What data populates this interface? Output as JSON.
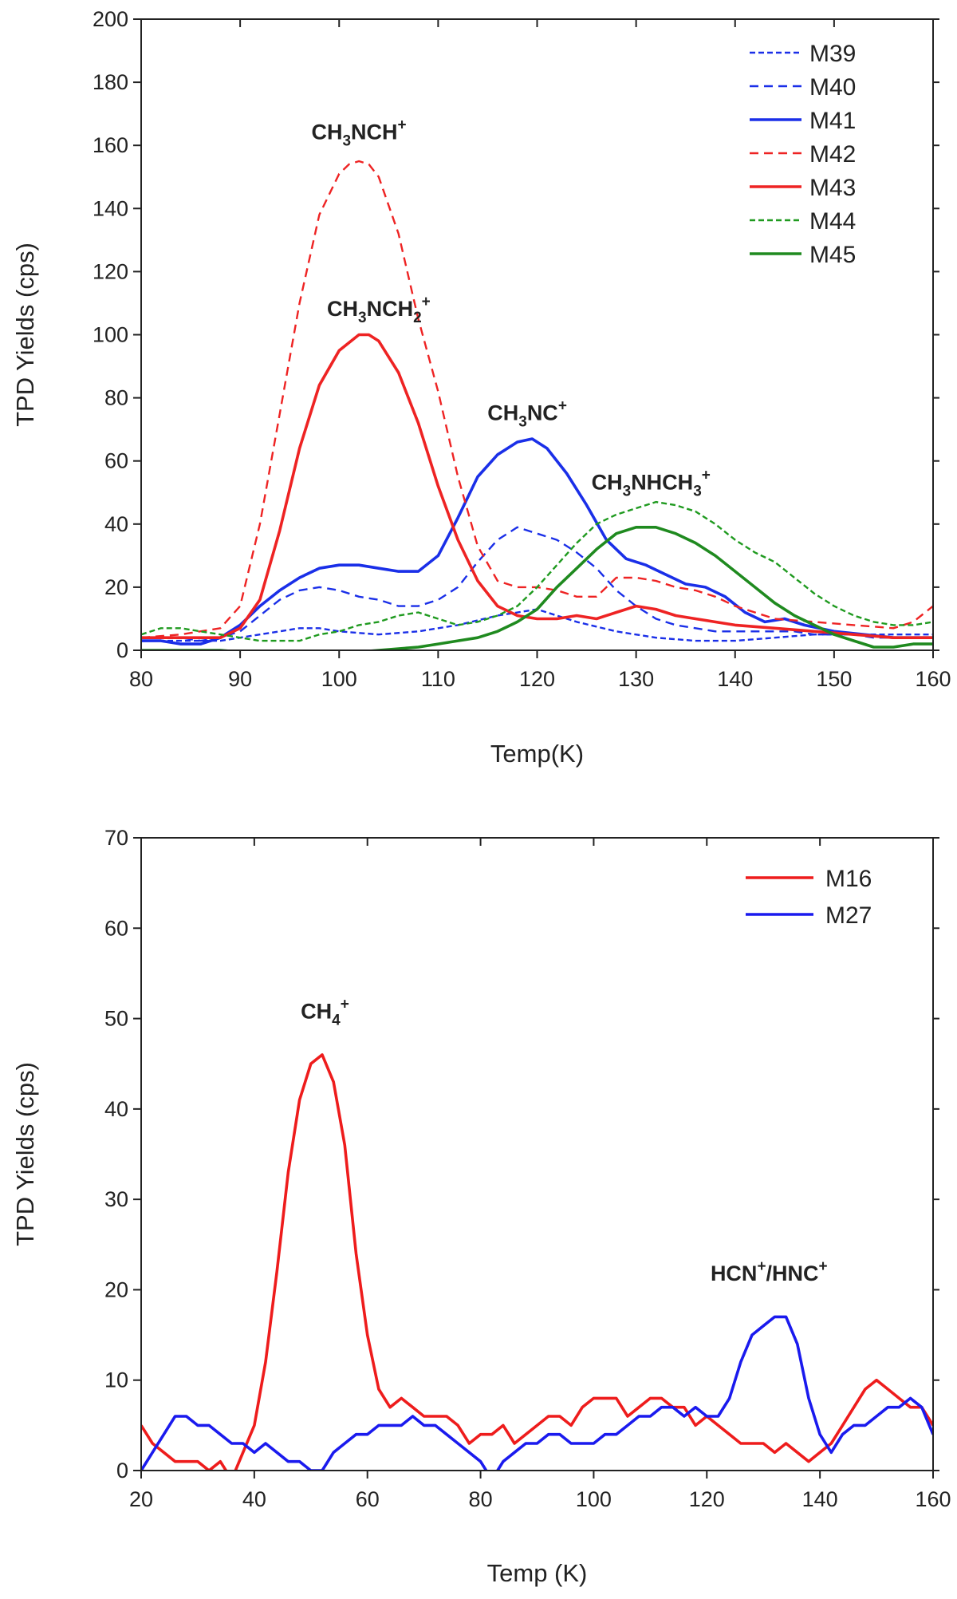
{
  "chart_data": [
    {
      "type": "line",
      "xlabel": "Temp(K)",
      "ylabel": "TPD Yields (cps)",
      "xlim": [
        80,
        160
      ],
      "ylim": [
        0,
        200
      ],
      "xticks": [
        80,
        90,
        100,
        110,
        120,
        130,
        140,
        150,
        160
      ],
      "yticks": [
        0,
        20,
        40,
        60,
        80,
        100,
        120,
        140,
        160,
        180,
        200
      ],
      "legend_position": "top-right",
      "series": [
        {
          "name": "M39",
          "color": "#1a2fe8",
          "style": "short-dash",
          "x": [
            80,
            84,
            88,
            92,
            96,
            98,
            100,
            104,
            108,
            112,
            116,
            120,
            124,
            128,
            132,
            136,
            140,
            144,
            148,
            152,
            156,
            160
          ],
          "y": [
            3,
            3,
            3,
            5,
            7,
            7,
            6,
            5,
            6,
            8,
            11,
            13,
            9,
            6,
            4,
            3,
            3,
            4,
            5,
            5,
            5,
            5
          ]
        },
        {
          "name": "M40",
          "color": "#1a2fe8",
          "style": "dash",
          "x": [
            80,
            84,
            86,
            88,
            90,
            92,
            94,
            96,
            98,
            100,
            102,
            104,
            106,
            108,
            110,
            112,
            114,
            116,
            118,
            120,
            122,
            124,
            126,
            128,
            130,
            132,
            134,
            136,
            138,
            140,
            142,
            144,
            146,
            148,
            150,
            152,
            154,
            156,
            158,
            160
          ],
          "y": [
            4,
            4,
            3,
            4,
            6,
            11,
            16,
            19,
            20,
            19,
            17,
            16,
            14,
            14,
            16,
            20,
            28,
            35,
            39,
            37,
            35,
            31,
            26,
            19,
            14,
            10,
            8,
            7,
            6,
            6,
            6,
            6,
            6,
            5,
            5,
            5,
            4,
            4,
            4,
            4
          ]
        },
        {
          "name": "M41",
          "color": "#1a2fe8",
          "style": "solid",
          "x": [
            80,
            82,
            84,
            86,
            88,
            90,
            92,
            94,
            96,
            98,
            100,
            102,
            104,
            106,
            108,
            110,
            112,
            114,
            116,
            118,
            119.5,
            121,
            123,
            125,
            127,
            129,
            131,
            133,
            135,
            137,
            139,
            141,
            143,
            145,
            147,
            150,
            153,
            156,
            160
          ],
          "y": [
            3,
            3,
            2,
            2,
            4,
            8,
            14,
            19,
            23,
            26,
            27,
            27,
            26,
            25,
            25,
            30,
            42,
            55,
            62,
            66,
            67,
            64,
            56,
            46,
            35,
            29,
            27,
            24,
            21,
            20,
            17,
            12,
            9,
            10,
            8,
            6,
            5,
            4,
            4
          ]
        },
        {
          "name": "M42",
          "color": "#ee2323",
          "style": "dash",
          "x": [
            80,
            84,
            88,
            90,
            92,
            94,
            96,
            98,
            100,
            101,
            102,
            103,
            104,
            106,
            108,
            110,
            112,
            114,
            116,
            118,
            120,
            122,
            124,
            126,
            128,
            130,
            132,
            134,
            136,
            138,
            140,
            144,
            148,
            152,
            156,
            158,
            160
          ],
          "y": [
            4,
            5,
            7,
            14,
            40,
            75,
            110,
            138,
            151,
            154,
            155,
            154,
            150,
            132,
            105,
            82,
            55,
            33,
            22,
            20,
            20,
            19,
            17,
            17,
            23,
            23,
            22,
            20,
            19,
            17,
            14,
            10,
            9,
            8,
            7,
            9,
            14
          ]
        },
        {
          "name": "M43",
          "color": "#ee2323",
          "style": "solid",
          "x": [
            80,
            84,
            88,
            90,
            92,
            94,
            96,
            98,
            100,
            102,
            103,
            104,
            106,
            108,
            110,
            112,
            114,
            116,
            118,
            120,
            122,
            124,
            126,
            128,
            130,
            132,
            134,
            136,
            140,
            144,
            148,
            152,
            156,
            160
          ],
          "y": [
            4,
            4,
            4,
            7,
            16,
            38,
            64,
            84,
            95,
            100,
            100,
            98,
            88,
            72,
            52,
            35,
            22,
            14,
            11,
            10,
            10,
            11,
            10,
            12,
            14,
            13,
            11,
            10,
            8,
            7,
            6,
            5,
            4,
            4
          ]
        },
        {
          "name": "M44",
          "color": "#1f9a1f",
          "style": "short-dash",
          "x": [
            80,
            82,
            84,
            86,
            88,
            90,
            92,
            94,
            96,
            98,
            100,
            102,
            104,
            106,
            108,
            110,
            112,
            114,
            116,
            118,
            120,
            122,
            124,
            126,
            128,
            130,
            132,
            134,
            136,
            138,
            140,
            142,
            144,
            146,
            148,
            150,
            152,
            154,
            156,
            158,
            160
          ],
          "y": [
            5,
            7,
            7,
            6,
            5,
            4,
            3,
            3,
            3,
            5,
            6,
            8,
            9,
            11,
            12,
            10,
            8,
            9,
            11,
            14,
            20,
            27,
            34,
            40,
            43,
            45,
            47,
            46,
            44,
            40,
            35,
            31,
            28,
            23,
            18,
            14,
            11,
            9,
            8,
            8,
            9
          ]
        },
        {
          "name": "M45",
          "color": "#1f8a1f",
          "style": "solid",
          "x": [
            80,
            84,
            88,
            92,
            96,
            100,
            104,
            108,
            110,
            112,
            114,
            116,
            118,
            120,
            122,
            124,
            126,
            128,
            130,
            131,
            132,
            134,
            136,
            138,
            140,
            142,
            144,
            146,
            148,
            150,
            152,
            154,
            156,
            158,
            160
          ],
          "y": [
            0,
            0,
            0,
            -1,
            -1,
            -1,
            0,
            1,
            2,
            3,
            4,
            6,
            9,
            13,
            20,
            26,
            32,
            37,
            39,
            39,
            39,
            37,
            34,
            30,
            25,
            20,
            15,
            11,
            8,
            5,
            3,
            1,
            1,
            2,
            2
          ]
        }
      ],
      "annotations": [
        {
          "base": "CH",
          "sub1": "3",
          "mid": "NCH",
          "sub2": "",
          "sup": "+",
          "x": 102,
          "y": 162
        },
        {
          "base": "CH",
          "sub1": "3",
          "mid": "NCH",
          "sub2": "2",
          "sup": "+",
          "x": 104,
          "y": 106
        },
        {
          "base": "CH",
          "sub1": "3",
          "mid": "NC",
          "sub2": "",
          "sup": "+",
          "x": 119,
          "y": 73
        },
        {
          "base": "CH",
          "sub1": "3",
          "mid": "NHCH",
          "sub2": "3",
          "sup": "+",
          "x": 131.5,
          "y": 51
        }
      ]
    },
    {
      "type": "line",
      "xlabel": "Temp (K)",
      "ylabel": "TPD Yields (cps)",
      "xlim": [
        20,
        160
      ],
      "ylim": [
        0,
        70
      ],
      "xticks": [
        20,
        40,
        60,
        80,
        100,
        120,
        140,
        160
      ],
      "yticks": [
        0,
        10,
        20,
        30,
        40,
        50,
        60,
        70
      ],
      "legend_position": "top-right",
      "series": [
        {
          "name": "M16",
          "color": "#ee1c1c",
          "style": "solid",
          "x": [
            20,
            22,
            24,
            26,
            28,
            30,
            32,
            34,
            36,
            38,
            40,
            42,
            44,
            46,
            48,
            50,
            52,
            54,
            56,
            58,
            60,
            62,
            64,
            66,
            68,
            70,
            72,
            74,
            76,
            78,
            80,
            82,
            84,
            86,
            88,
            90,
            92,
            94,
            96,
            98,
            100,
            102,
            104,
            106,
            108,
            110,
            112,
            114,
            116,
            118,
            120,
            122,
            124,
            126,
            128,
            130,
            132,
            134,
            136,
            138,
            140,
            142,
            144,
            146,
            148,
            150,
            152,
            154,
            156,
            158,
            160
          ],
          "y": [
            5,
            3,
            2,
            1,
            1,
            1,
            0,
            1,
            -1,
            2,
            5,
            12,
            22,
            33,
            41,
            45,
            46,
            43,
            36,
            24,
            15,
            9,
            7,
            8,
            7,
            6,
            6,
            6,
            5,
            3,
            4,
            4,
            5,
            3,
            4,
            5,
            6,
            6,
            5,
            7,
            8,
            8,
            8,
            6,
            7,
            8,
            8,
            7,
            7,
            5,
            6,
            5,
            4,
            3,
            3,
            3,
            2,
            3,
            2,
            1,
            2,
            3,
            5,
            7,
            9,
            10,
            9,
            8,
            7,
            7,
            5
          ]
        },
        {
          "name": "M27",
          "color": "#1a1aee",
          "style": "solid",
          "x": [
            20,
            22,
            24,
            26,
            28,
            30,
            32,
            34,
            36,
            38,
            40,
            42,
            44,
            46,
            48,
            50,
            52,
            54,
            56,
            58,
            60,
            62,
            64,
            66,
            68,
            70,
            72,
            74,
            76,
            78,
            80,
            82,
            84,
            86,
            88,
            90,
            92,
            94,
            96,
            98,
            100,
            102,
            104,
            106,
            108,
            110,
            112,
            114,
            116,
            118,
            120,
            122,
            124,
            126,
            128,
            130,
            132,
            133,
            134,
            136,
            138,
            140,
            142,
            144,
            146,
            148,
            150,
            152,
            154,
            156,
            158,
            160
          ],
          "y": [
            0,
            2,
            4,
            6,
            6,
            5,
            5,
            4,
            3,
            3,
            2,
            3,
            2,
            1,
            1,
            0,
            0,
            2,
            3,
            4,
            4,
            5,
            5,
            5,
            6,
            5,
            5,
            4,
            3,
            2,
            1,
            -1,
            1,
            2,
            3,
            3,
            4,
            4,
            3,
            3,
            3,
            4,
            4,
            5,
            6,
            6,
            7,
            7,
            6,
            7,
            6,
            6,
            8,
            12,
            15,
            16,
            17,
            17,
            17,
            14,
            8,
            4,
            2,
            4,
            5,
            5,
            6,
            7,
            7,
            8,
            7,
            4
          ]
        }
      ],
      "annotations": [
        {
          "base": "CH",
          "sub1": "4",
          "mid": "",
          "sub2": "",
          "sup": "+",
          "x": 52.5,
          "y": 50
        },
        {
          "base": "HCN",
          "sub1": "",
          "mid": "",
          "sub2": "",
          "sup": "+",
          "tail": "/HNC",
          "tail_sup": "+",
          "x": 131,
          "y": 21
        }
      ]
    }
  ]
}
